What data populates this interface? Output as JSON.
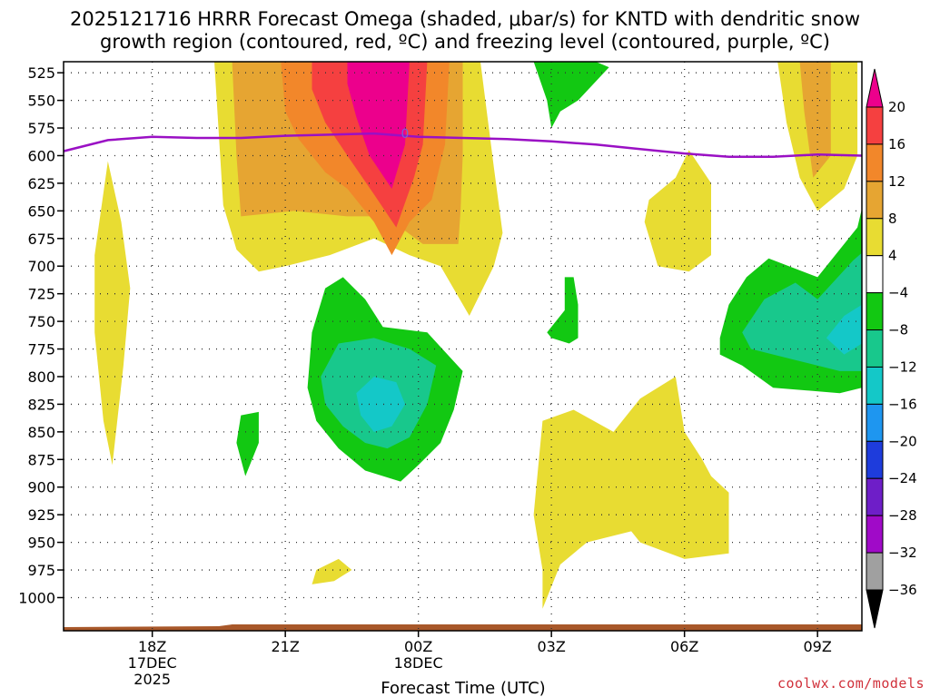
{
  "chart_data": {
    "type": "heatmap",
    "title_line1": "2025121716 HRRR Forecast Omega (shaded, μbar/s) for KNTD with dendritic snow",
    "title_line2": "growth region (contoured, red, ºC) and freezing level (contoured, purple, ºC)",
    "xlabel": "Forecast Time (UTC)",
    "ylabel": "",
    "credit": "coolwx.com/models",
    "x_range": [
      16.0,
      34.0
    ],
    "y_range": [
      515,
      1030
    ],
    "y_ticks": [
      525,
      550,
      575,
      600,
      625,
      650,
      675,
      700,
      725,
      750,
      775,
      800,
      825,
      850,
      875,
      900,
      925,
      950,
      975,
      1000
    ],
    "x_ticks": [
      {
        "t": 18,
        "lines": [
          "18Z",
          "17DEC",
          "2025"
        ]
      },
      {
        "t": 21,
        "lines": [
          "21Z"
        ]
      },
      {
        "t": 24,
        "lines": [
          "00Z",
          "18DEC"
        ]
      },
      {
        "t": 27,
        "lines": [
          "03Z"
        ]
      },
      {
        "t": 30,
        "lines": [
          "06Z"
        ]
      },
      {
        "t": 33,
        "lines": [
          "09Z"
        ]
      }
    ],
    "grid": true,
    "colorbar": {
      "labels": [
        "20",
        "16",
        "12",
        "8",
        "4",
        "−4",
        "−8",
        "−12",
        "−16",
        "−20",
        "−24",
        "−28",
        "−32",
        "−36"
      ],
      "colors": [
        "#ec008c",
        "#f54040",
        "#f2872a",
        "#e6a532",
        "#e8dc32",
        "#ffffff",
        "#12c812",
        "#18c88c",
        "#14c8c8",
        "#1e96f0",
        "#1e3cdc",
        "#6e1ec8",
        "#a00ac8",
        "#a0a0a0"
      ],
      "top_arrow_color": "#ec008c",
      "bottom_arrow_color": "#000000"
    },
    "levels": [
      {
        "name": "+4",
        "color": "#e8dc32",
        "polys": [
          [
            [
              17.0,
              605
            ],
            [
              17.3,
              660
            ],
            [
              17.5,
              720
            ],
            [
              17.35,
              790
            ],
            [
              17.1,
              880
            ],
            [
              16.9,
              840
            ],
            [
              16.7,
              760
            ],
            [
              16.7,
              690
            ]
          ],
          [
            [
              19.4,
              515
            ],
            [
              21.9,
              515
            ],
            [
              23.7,
              515
            ],
            [
              24.6,
              515
            ],
            [
              25.4,
              515
            ],
            [
              25.7,
              610
            ],
            [
              25.9,
              670
            ],
            [
              25.7,
              700
            ],
            [
              25.15,
              745
            ],
            [
              24.5,
              700
            ],
            [
              23.8,
              690
            ],
            [
              23.0,
              675
            ],
            [
              22.0,
              690
            ],
            [
              21.0,
              700
            ],
            [
              20.4,
              705
            ],
            [
              19.9,
              685
            ],
            [
              19.6,
              645
            ]
          ],
          [
            [
              26.8,
              1010
            ],
            [
              26.8,
              975
            ],
            [
              26.6,
              925
            ],
            [
              26.8,
              840
            ],
            [
              27.5,
              830
            ],
            [
              28.4,
              850
            ],
            [
              29.0,
              820
            ],
            [
              29.8,
              800
            ],
            [
              30.0,
              850
            ],
            [
              30.4,
              875
            ],
            [
              30.6,
              890
            ],
            [
              31.0,
              905
            ],
            [
              31.0,
              960
            ],
            [
              30.0,
              965
            ],
            [
              29.0,
              950
            ],
            [
              28.8,
              940
            ],
            [
              27.8,
              950
            ],
            [
              27.2,
              970
            ]
          ],
          [
            [
              29.8,
              620
            ],
            [
              30.1,
              595
            ],
            [
              30.6,
              625
            ],
            [
              30.6,
              690
            ],
            [
              30.1,
              705
            ],
            [
              29.4,
              700
            ],
            [
              29.1,
              660
            ],
            [
              29.2,
              640
            ]
          ],
          [
            [
              32.1,
              515
            ],
            [
              33.9,
              515
            ],
            [
              33.9,
              600
            ],
            [
              33.6,
              630
            ],
            [
              33.0,
              650
            ],
            [
              32.6,
              620
            ],
            [
              32.3,
              570
            ]
          ],
          [
            [
              21.7,
              975
            ],
            [
              22.2,
              965
            ],
            [
              22.5,
              975
            ],
            [
              22.1,
              985
            ],
            [
              21.6,
              988
            ]
          ]
        ]
      },
      {
        "name": "+8",
        "color": "#e6a532",
        "polys": [
          [
            [
              19.8,
              515
            ],
            [
              23.2,
              515
            ],
            [
              24.2,
              515
            ],
            [
              25.0,
              515
            ],
            [
              25.0,
              600
            ],
            [
              24.95,
              650
            ],
            [
              24.9,
              680
            ],
            [
              24.1,
              680
            ],
            [
              23.6,
              665
            ],
            [
              23.2,
              655
            ],
            [
              22.4,
              655
            ],
            [
              21.2,
              650
            ],
            [
              20.0,
              655
            ],
            [
              19.9,
              600
            ]
          ],
          [
            [
              32.6,
              515
            ],
            [
              33.3,
              515
            ],
            [
              33.3,
              600
            ],
            [
              32.9,
              620
            ],
            [
              32.7,
              560
            ]
          ]
        ]
      },
      {
        "name": "+12",
        "color": "#f2872a",
        "polys": [
          [
            [
              20.9,
              515
            ],
            [
              24.7,
              515
            ],
            [
              24.6,
              590
            ],
            [
              24.3,
              640
            ],
            [
              23.8,
              660
            ],
            [
              23.4,
              690
            ],
            [
              23.0,
              660
            ],
            [
              22.4,
              630
            ],
            [
              21.9,
              615
            ],
            [
              21.3,
              585
            ],
            [
              21.0,
              560
            ]
          ]
        ]
      },
      {
        "name": "+16",
        "color": "#f54040",
        "polys": [
          [
            [
              21.6,
              515
            ],
            [
              24.2,
              515
            ],
            [
              24.1,
              590
            ],
            [
              23.9,
              620
            ],
            [
              23.5,
              665
            ],
            [
              23.0,
              635
            ],
            [
              22.4,
              600
            ],
            [
              21.9,
              570
            ],
            [
              21.6,
              540
            ]
          ]
        ]
      },
      {
        "name": "+20",
        "color": "#ec008c",
        "polys": [
          [
            [
              22.4,
              515
            ],
            [
              23.8,
              515
            ],
            [
              23.7,
              590
            ],
            [
              23.4,
              630
            ],
            [
              22.9,
              600
            ],
            [
              22.6,
              565
            ],
            [
              22.4,
              535
            ]
          ]
        ]
      },
      {
        "name": "-4",
        "color": "#12c812",
        "polys": [
          [
            [
              26.6,
              515
            ],
            [
              28.0,
              515
            ],
            [
              28.3,
              520
            ],
            [
              27.6,
              550
            ],
            [
              27.4,
              555
            ],
            [
              27.2,
              560
            ],
            [
              27.0,
              575
            ],
            [
              26.9,
              550
            ]
          ],
          [
            [
              21.5,
              810
            ],
            [
              21.6,
              760
            ],
            [
              21.9,
              720
            ],
            [
              22.3,
              710
            ],
            [
              22.8,
              730
            ],
            [
              23.2,
              755
            ],
            [
              24.2,
              760
            ],
            [
              25.0,
              795
            ],
            [
              24.8,
              830
            ],
            [
              24.5,
              860
            ],
            [
              24.0,
              880
            ],
            [
              23.6,
              895
            ],
            [
              22.8,
              885
            ],
            [
              22.2,
              865
            ],
            [
              21.7,
              840
            ]
          ],
          [
            [
              20.0,
              835
            ],
            [
              20.4,
              832
            ],
            [
              20.4,
              860
            ],
            [
              20.1,
              890
            ],
            [
              19.9,
              860
            ]
          ],
          [
            [
              26.9,
              760
            ],
            [
              27.3,
              740
            ],
            [
              27.3,
              710
            ],
            [
              27.5,
              710
            ],
            [
              27.6,
              735
            ],
            [
              27.6,
              765
            ],
            [
              27.4,
              770
            ],
            [
              27.0,
              765
            ]
          ],
          [
            [
              30.8,
              765
            ],
            [
              31.0,
              735
            ],
            [
              31.4,
              710
            ],
            [
              31.9,
              693
            ],
            [
              33.0,
              710
            ],
            [
              33.9,
              665
            ],
            [
              34.0,
              648
            ],
            [
              34.0,
              810
            ],
            [
              33.5,
              815
            ],
            [
              32.0,
              810
            ],
            [
              31.3,
              790
            ],
            [
              30.8,
              780
            ]
          ]
        ]
      },
      {
        "name": "-8",
        "color": "#18c88c",
        "polys": [
          [
            [
              21.8,
              800
            ],
            [
              22.2,
              770
            ],
            [
              23.0,
              765
            ],
            [
              23.8,
              775
            ],
            [
              24.4,
              790
            ],
            [
              24.2,
              825
            ],
            [
              23.8,
              855
            ],
            [
              23.3,
              865
            ],
            [
              22.8,
              860
            ],
            [
              22.3,
              845
            ],
            [
              21.9,
              825
            ]
          ],
          [
            [
              31.3,
              760
            ],
            [
              31.8,
              730
            ],
            [
              32.5,
              715
            ],
            [
              33.0,
              730
            ],
            [
              33.8,
              695
            ],
            [
              34.0,
              688
            ],
            [
              34.0,
              795
            ],
            [
              33.5,
              795
            ],
            [
              32.5,
              785
            ],
            [
              32.0,
              780
            ],
            [
              31.5,
              775
            ]
          ]
        ]
      },
      {
        "name": "-12",
        "color": "#14c8c8",
        "polys": [
          [
            [
              22.6,
              815
            ],
            [
              23.0,
              800
            ],
            [
              23.5,
              805
            ],
            [
              23.7,
              825
            ],
            [
              23.4,
              845
            ],
            [
              23.0,
              850
            ],
            [
              22.7,
              835
            ]
          ],
          [
            [
              33.2,
              765
            ],
            [
              33.6,
              745
            ],
            [
              34.0,
              735
            ],
            [
              34.0,
              770
            ],
            [
              33.6,
              780
            ]
          ]
        ]
      }
    ],
    "freezing_level": {
      "color": "#9a10c4",
      "label": "0",
      "t": [
        16.0,
        17.0,
        18.0,
        19.0,
        20.0,
        21.0,
        22.0,
        23.0,
        24.0,
        25.0,
        26.0,
        27.0,
        28.0,
        29.0,
        30.0,
        31.0,
        32.0,
        33.0,
        34.0
      ],
      "p": [
        596,
        586,
        583,
        584,
        584,
        582,
        581,
        580,
        583,
        584,
        585,
        587,
        590,
        594,
        598,
        601,
        601,
        599,
        600
      ]
    },
    "ground_color": "#a8582a"
  }
}
